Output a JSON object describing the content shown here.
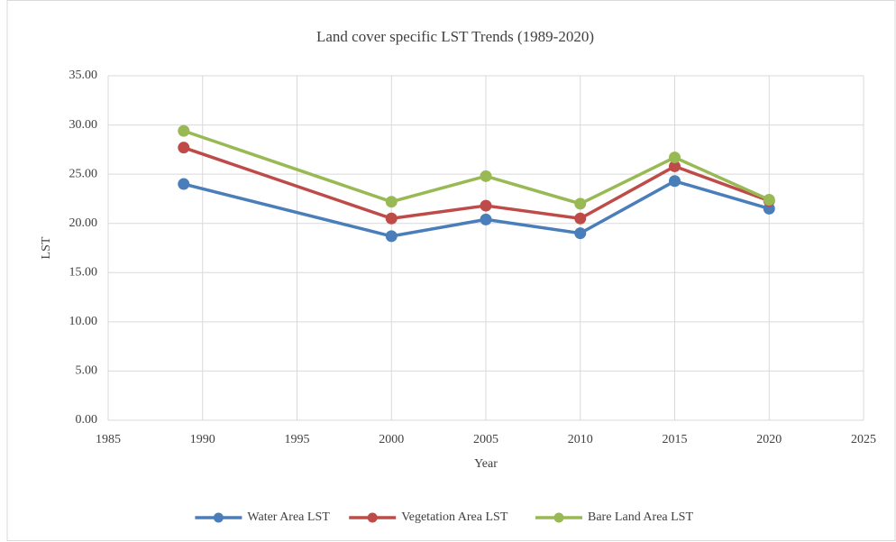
{
  "chart_data": {
    "type": "line",
    "title": "Land cover specific LST Trends (1989-2020)",
    "x_label": "Year",
    "y_label": "LST",
    "x": [
      1989,
      2000,
      2005,
      2010,
      2015,
      2020
    ],
    "series": [
      {
        "name": "Water Area LST",
        "color": "#4a7ebb",
        "values": [
          24.0,
          18.7,
          20.4,
          19.0,
          24.3,
          21.5
        ]
      },
      {
        "name": "Vegetation Area LST",
        "color": "#be4b48",
        "values": [
          27.7,
          20.5,
          21.8,
          20.5,
          25.8,
          22.3
        ]
      },
      {
        "name": "Bare Land Area LST",
        "color": "#98b954",
        "values": [
          29.4,
          22.2,
          24.8,
          22.0,
          26.7,
          22.4
        ]
      }
    ],
    "xlim": [
      1985,
      2025
    ],
    "xticks": [
      1985,
      1990,
      1995,
      2000,
      2005,
      2010,
      2015,
      2020,
      2025
    ],
    "ylim": [
      0,
      35
    ],
    "yticks": [
      {
        "value": 0,
        "label": "0.00"
      },
      {
        "value": 5,
        "label": "5.00"
      },
      {
        "value": 10,
        "label": "10.00"
      },
      {
        "value": 15,
        "label": "15.00"
      },
      {
        "value": 20,
        "label": "20.00"
      },
      {
        "value": 25,
        "label": "25.00"
      },
      {
        "value": 30,
        "label": "30.00"
      },
      {
        "value": 35,
        "label": "35.00"
      }
    ],
    "grid": true,
    "legend": "bottom"
  }
}
